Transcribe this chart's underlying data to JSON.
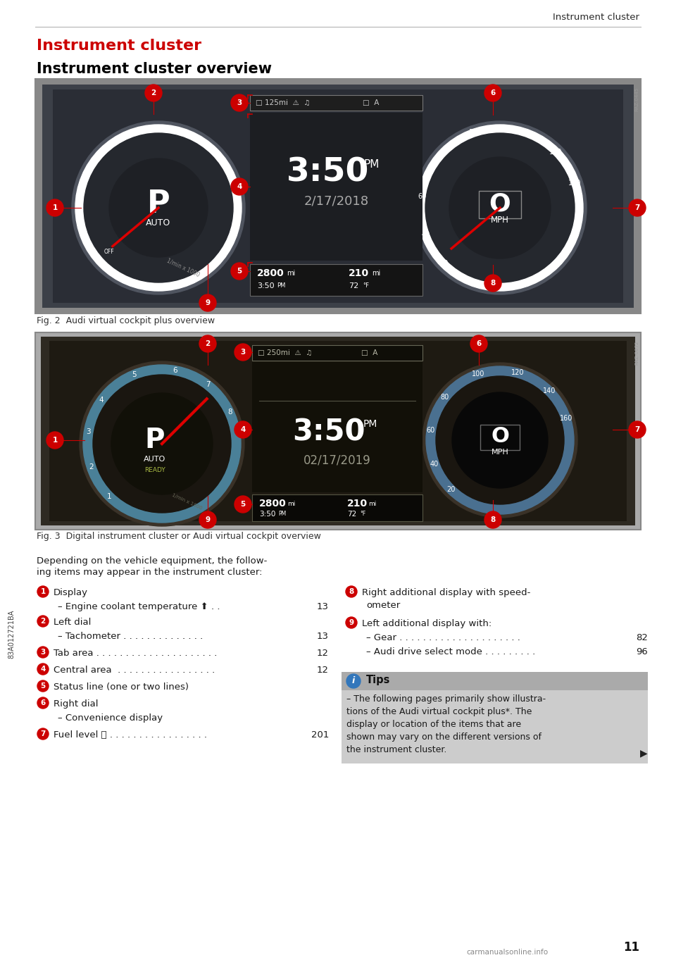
{
  "page_title": "Instrument cluster",
  "section_title": "Instrument cluster",
  "subsection_title": "Instrument cluster overview",
  "fig2_caption": "Fig. 2  Audi virtual cockpit plus overview",
  "fig3_caption": "Fig. 3  Digital instrument cluster or Audi virtual cockpit overview",
  "header_line_color": "#aaaaaa",
  "title_color": "#cc0000",
  "subtitle_color": "#000000",
  "body_text_color": "#1a1a1a",
  "background_color": "#ffffff",
  "left_margin_text": "83A012721BA",
  "page_number": "11",
  "watermark": "carmanualsonline.info",
  "circle_bg": "#cc0000",
  "circle_text": "#ffffff",
  "tips_title": "Tips",
  "tips_text": "– The following pages primarily show illustra-\ntions of the Audi virtual cockpit plus*. The\ndisplay or location of the items that are\nshown may vary on the different versions of\nthe instrument cluster.",
  "tips_bg": "#cccccc",
  "tips_header_bg": "#aaaaaa"
}
